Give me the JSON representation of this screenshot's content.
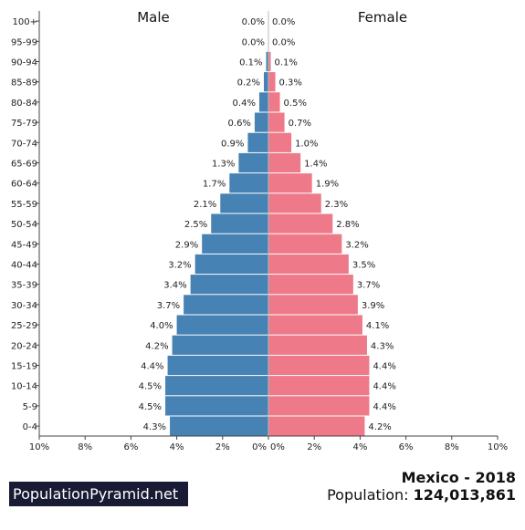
{
  "footer": {
    "brand": "PopulationPyramid.net",
    "country_year": "Mexico - 2018",
    "population_label": "Population:",
    "population_value": "124,013,861"
  },
  "chart_data": {
    "type": "bar",
    "orientation": "horizontal",
    "left_label": "Male",
    "right_label": "Female",
    "categories": [
      "100+",
      "95-99",
      "90-94",
      "85-89",
      "80-84",
      "75-79",
      "70-74",
      "65-69",
      "60-64",
      "55-59",
      "50-54",
      "45-49",
      "40-44",
      "35-39",
      "30-34",
      "25-29",
      "20-24",
      "15-19",
      "10-14",
      "5-9",
      "0-4"
    ],
    "series": [
      {
        "name": "Male",
        "color": "#4682b4",
        "values": [
          0.0,
          0.0,
          0.1,
          0.2,
          0.4,
          0.6,
          0.9,
          1.3,
          1.7,
          2.1,
          2.5,
          2.9,
          3.2,
          3.4,
          3.7,
          4.0,
          4.2,
          4.4,
          4.5,
          4.5,
          4.3
        ]
      },
      {
        "name": "Female",
        "color": "#ee7989",
        "values": [
          0.0,
          0.0,
          0.1,
          0.3,
          0.5,
          0.7,
          1.0,
          1.4,
          1.9,
          2.3,
          2.8,
          3.2,
          3.5,
          3.7,
          3.9,
          4.1,
          4.3,
          4.4,
          4.4,
          4.4,
          4.2
        ]
      }
    ],
    "xlim": [
      0,
      10
    ],
    "x_ticks_left": [
      "10%",
      "8%",
      "6%",
      "4%",
      "2%",
      "0%"
    ],
    "x_ticks_right": [
      "0%",
      "2%",
      "4%",
      "6%",
      "8%",
      "10%"
    ],
    "grid": false
  }
}
